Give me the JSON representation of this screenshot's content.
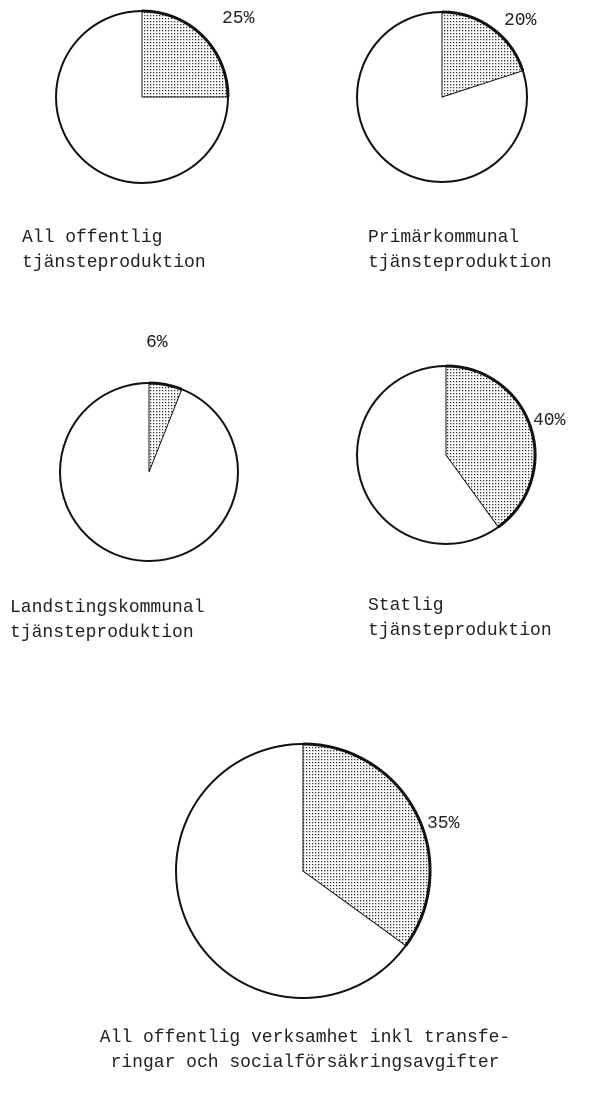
{
  "chart_data": [
    {
      "type": "pie",
      "values": [
        25
      ],
      "value_labels": [
        "25%"
      ],
      "title": [
        "All offentlig",
        "tjänsteproduktion"
      ]
    },
    {
      "type": "pie",
      "values": [
        20
      ],
      "value_labels": [
        "20%"
      ],
      "title": [
        "Primärkommunal",
        "tjänsteproduktion"
      ]
    },
    {
      "type": "pie",
      "values": [
        6
      ],
      "value_labels": [
        "6%"
      ],
      "title": [
        "Landstingskommunal",
        "tjänsteproduktion"
      ]
    },
    {
      "type": "pie",
      "values": [
        40
      ],
      "value_labels": [
        "40%"
      ],
      "title": [
        "Statlig",
        "tjänsteproduktion"
      ]
    },
    {
      "type": "pie",
      "values": [
        35
      ],
      "value_labels": [
        "35%"
      ],
      "title": [
        "All offentlig verksamhet inkl transfe-",
        "ringar och socialförsäkringsavgifter"
      ]
    }
  ]
}
